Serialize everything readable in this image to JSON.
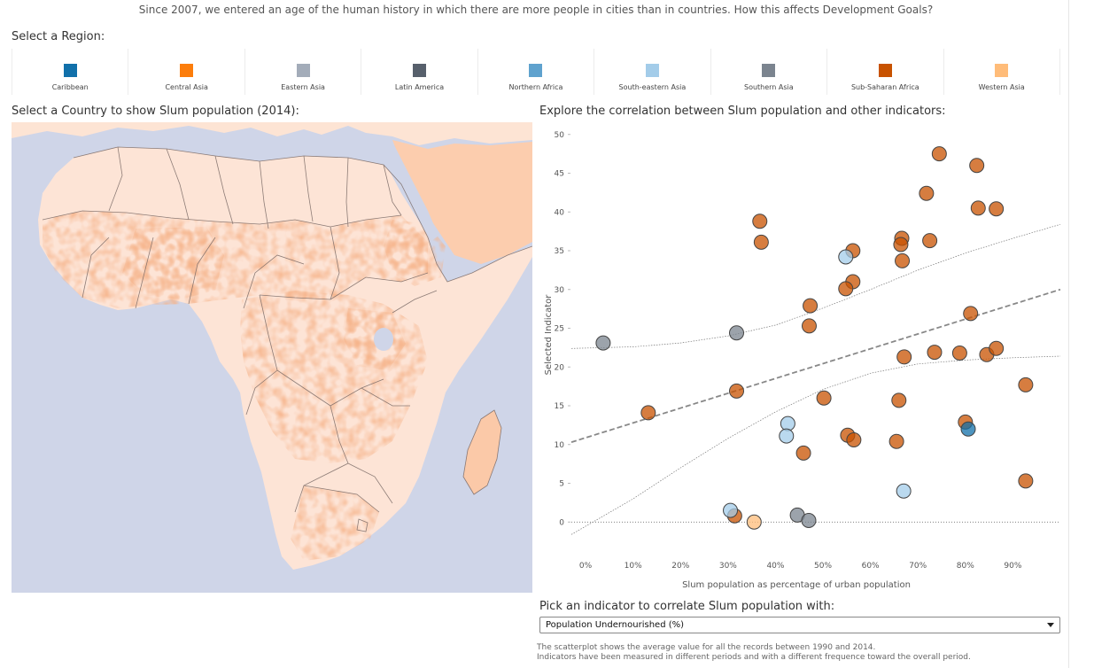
{
  "headline": "Since 2007, we entered an age of the human history in which there are more people in cities than in countries. How this affects Development Goals?",
  "region_section": {
    "title": "Select a Region:",
    "regions": [
      {
        "label": "Caribbean",
        "color": "#1170aa"
      },
      {
        "label": "Central Asia",
        "color": "#fc7d0b"
      },
      {
        "label": "Eastern Asia",
        "color": "#a3acb9"
      },
      {
        "label": "Latin America",
        "color": "#57606c"
      },
      {
        "label": "Northern Africa",
        "color": "#5fa2ce"
      },
      {
        "label": "South-eastern Asia",
        "color": "#a3cce9"
      },
      {
        "label": "Southern Asia",
        "color": "#7b848f"
      },
      {
        "label": "Sub-Saharan Africa",
        "color": "#c85200"
      },
      {
        "label": "Western Asia",
        "color": "#ffbc79"
      }
    ]
  },
  "map_section": {
    "title": "Select a Country to show Slum population (2014):",
    "ocean_color": "#cfd5e8",
    "land_color": "#fde8dc"
  },
  "scatter_section": {
    "title": "Explore the correlation between Slum population and other indicators:"
  },
  "chart_data": {
    "type": "scatter",
    "title": "",
    "xlabel": "Slum population as percentage of urban population",
    "ylabel": "Selected Indicator",
    "xlim": [
      -3,
      100
    ],
    "ylim": [
      -5,
      51
    ],
    "xticks": [
      {
        "value": 0,
        "label": "0%"
      },
      {
        "value": 10,
        "label": "10%"
      },
      {
        "value": 20,
        "label": "20%"
      },
      {
        "value": 30,
        "label": "30%"
      },
      {
        "value": 40,
        "label": "40%"
      },
      {
        "value": 50,
        "label": "50%"
      },
      {
        "value": 60,
        "label": "60%"
      },
      {
        "value": 70,
        "label": "70%"
      },
      {
        "value": 80,
        "label": "80%"
      },
      {
        "value": 90,
        "label": "90%"
      }
    ],
    "yticks": [
      0,
      5,
      10,
      15,
      20,
      25,
      30,
      35,
      40,
      45,
      50
    ],
    "grid": false,
    "zero_line": true,
    "trend_line": {
      "x": [
        -3,
        100
      ],
      "y": [
        10.3,
        30
      ]
    },
    "confidence_upper": [
      [
        -3,
        22.4
      ],
      [
        10,
        22.6
      ],
      [
        20,
        23.1
      ],
      [
        30,
        24
      ],
      [
        40,
        25.4
      ],
      [
        50,
        27.6
      ],
      [
        60,
        30
      ],
      [
        70,
        32.5
      ],
      [
        80,
        34.7
      ],
      [
        90,
        36.6
      ],
      [
        100,
        38.4
      ]
    ],
    "confidence_lower": [
      [
        -3,
        -1.6
      ],
      [
        10,
        3
      ],
      [
        20,
        7
      ],
      [
        30,
        10.8
      ],
      [
        40,
        14.2
      ],
      [
        50,
        17.1
      ],
      [
        60,
        19.2
      ],
      [
        70,
        20.4
      ],
      [
        80,
        20.9
      ],
      [
        90,
        21.2
      ],
      [
        100,
        21.4
      ]
    ],
    "series": [
      {
        "region": "Sub-Saharan Africa",
        "color": "#c85200",
        "points": [
          [
            74.5,
            47.5
          ],
          [
            82.4,
            46.0
          ],
          [
            71.8,
            42.4
          ],
          [
            82.7,
            40.5
          ],
          [
            86.5,
            40.4
          ],
          [
            36.7,
            38.8
          ],
          [
            37.0,
            36.1
          ],
          [
            66.6,
            36.6
          ],
          [
            72.5,
            36.3
          ],
          [
            56.3,
            35.0
          ],
          [
            66.4,
            35.8
          ],
          [
            66.7,
            33.7
          ],
          [
            56.3,
            31.0
          ],
          [
            54.8,
            30.1
          ],
          [
            47.3,
            27.9
          ],
          [
            81.1,
            26.9
          ],
          [
            47.1,
            25.3
          ],
          [
            92.7,
            17.7
          ],
          [
            67.1,
            21.3
          ],
          [
            73.5,
            21.9
          ],
          [
            78.8,
            21.8
          ],
          [
            84.5,
            21.6
          ],
          [
            86.5,
            22.4
          ],
          [
            13.2,
            14.1
          ],
          [
            31.8,
            16.9
          ],
          [
            50.2,
            16.0
          ],
          [
            66.0,
            15.7
          ],
          [
            80.0,
            12.9
          ],
          [
            55.2,
            11.2
          ],
          [
            56.5,
            10.6
          ],
          [
            65.5,
            10.4
          ],
          [
            45.9,
            8.9
          ],
          [
            92.7,
            5.3
          ],
          [
            31.4,
            0.8
          ]
        ]
      },
      {
        "region": "Southern Asia",
        "color": "#7b848f",
        "points": [
          [
            3.7,
            23.1
          ],
          [
            31.8,
            24.4
          ],
          [
            44.6,
            0.9
          ],
          [
            47.0,
            0.2
          ]
        ]
      },
      {
        "region": "South-eastern Asia",
        "color": "#a3cce9",
        "points": [
          [
            54.8,
            34.2
          ],
          [
            42.6,
            12.7
          ],
          [
            42.3,
            11.1
          ],
          [
            30.5,
            1.5
          ],
          [
            67.0,
            4.0
          ]
        ]
      },
      {
        "region": "Caribbean",
        "color": "#1170aa",
        "points": [
          [
            80.6,
            12.0
          ]
        ]
      },
      {
        "region": "Western Asia",
        "color": "#ffbc79",
        "points": [
          [
            35.5,
            0.0
          ]
        ]
      }
    ]
  },
  "indicator_section": {
    "title": "Pick an indicator to correlate Slum population with:",
    "selected": "Population Undernourished (%)"
  },
  "notes": {
    "line1": "The scatterplot shows the average value for all the records between 1990 and 2014.",
    "line2": "Indicators have been measured in different periods and with a different frequence toward the overall period."
  }
}
